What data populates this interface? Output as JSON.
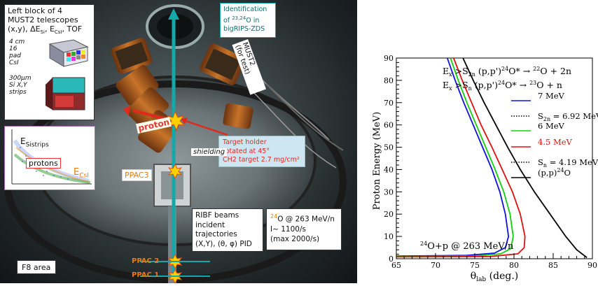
{
  "photo": {
    "must2_block": {
      "title_lines": [
        "Left block of 4",
        "MUST2 telescopes"
      ],
      "line3_pre": "(x,y), ΔE",
      "line3_sub1": "Si",
      "line3_mid": ", E",
      "line3_sub2": "CsI",
      "line3_post": ", TOF",
      "csi_label": [
        "4 cm",
        "16",
        "pad",
        "CsI"
      ],
      "si_label": [
        "300μm",
        "Si X,Y",
        "strips"
      ]
    },
    "identification": {
      "lines": [
        "Identification",
        "of ",
        "O in",
        "bigRIPS-ZDS"
      ],
      "sup": "23,24"
    },
    "must2_test": "MUST2\n(for test)",
    "proton_label": "proton",
    "target_holder": [
      "Target holder",
      "rotated at 45°",
      "CH2 target 2.7 mg/cm²"
    ],
    "shielding": "shielding",
    "ppac3": "PPAC3",
    "ppac2": "PPAC 2",
    "ppac1": "PPAC 1",
    "inset": {
      "esi_main": "E",
      "esi_sub": "Sistrips",
      "protons": "protons",
      "ecsi_main": "E",
      "ecsi_sub": "CsI"
    },
    "ribf": [
      "RIBF beams",
      "incident",
      "trajectories",
      "(X,Y), (θ, φ) PID"
    ],
    "beam_box": {
      "sup": "24",
      "l1": "O @ 263 MeV/n",
      "l2": "I~ 1100/s",
      "l3": "(max 2000/s)"
    },
    "f8": "F8 area"
  },
  "chart_data": {
    "type": "line",
    "xlabel_main": "θ",
    "xlabel_sub": "lab",
    "xlabel_post": " (deg.)",
    "ylabel": "Proton Energy (MeV)",
    "xlim": [
      65,
      90
    ],
    "ylim": [
      0,
      90
    ],
    "xticks": [
      65,
      70,
      75,
      80,
      85,
      90
    ],
    "yticks": [
      0,
      10,
      20,
      30,
      40,
      50,
      60,
      70,
      80,
      90
    ],
    "xtick_labels": [
      "65",
      "70",
      "75",
      "80",
      "85",
      "90"
    ],
    "ytick_labels": [
      "0",
      "10",
      "20",
      "30",
      "40",
      "50",
      "60",
      "70",
      "80",
      "90"
    ],
    "annotation_lines": [
      {
        "pre": "E",
        "sub": "x",
        "mid": " >S",
        "sub2": "2n",
        "post": "  (p,p')",
        "sup": "24",
        "tail": "O* → ",
        "sup2": "22",
        "end": "O + 2n"
      },
      {
        "pre": "E",
        "sub": "x",
        "mid": " >S",
        "sub2": "n",
        "post": "  (p,p')",
        "sup": "24",
        "tail": "O* → ",
        "sup2": "23",
        "end": "O + n"
      }
    ],
    "reaction": {
      "sup": "24",
      "text": "O+p @ 263 MeV/n"
    },
    "legend": [
      {
        "label": "7 MeV",
        "color": "#1010e0",
        "style": "solid"
      },
      {
        "label": "S",
        "sub": "2n",
        "post": " = 6.92 MeV",
        "color": "#000000",
        "style": "dotted"
      },
      {
        "label": "6 MeV",
        "color": "#10d010",
        "style": "solid"
      },
      {
        "label": "4.5 MeV",
        "color": "#e01010",
        "style": "solid",
        "text_color": "#e01010"
      },
      {
        "label": "S",
        "sub": "n",
        "post": " = 4.19 MeV",
        "color": "#000000",
        "style": "dotted"
      },
      {
        "label": "(p,p)",
        "sup": "24",
        "post": "O",
        "color": "#000000",
        "style": "solid"
      }
    ],
    "series": [
      {
        "color": "#1010e0",
        "points": [
          [
            71.5,
            90
          ],
          [
            72.5,
            80
          ],
          [
            73.6,
            70
          ],
          [
            74.8,
            60
          ],
          [
            76.0,
            50
          ],
          [
            77.2,
            40
          ],
          [
            78.2,
            30
          ],
          [
            78.9,
            20
          ],
          [
            79.3,
            10
          ],
          [
            78.9,
            5
          ],
          [
            77.5,
            2.5
          ],
          [
            74,
            1.5
          ],
          [
            65,
            1.2
          ]
        ]
      },
      {
        "color": "#10d010",
        "points": [
          [
            71.9,
            90
          ],
          [
            72.9,
            80
          ],
          [
            74.0,
            70
          ],
          [
            75.2,
            60
          ],
          [
            76.4,
            50
          ],
          [
            77.6,
            40
          ],
          [
            78.7,
            30
          ],
          [
            79.5,
            20
          ],
          [
            79.9,
            10
          ],
          [
            79.6,
            4.5
          ],
          [
            78.3,
            2.2
          ],
          [
            75,
            1.2
          ],
          [
            65,
            1.0
          ]
        ]
      },
      {
        "color": "#e01010",
        "points": [
          [
            72.3,
            90
          ],
          [
            73.4,
            80
          ],
          [
            74.6,
            70
          ],
          [
            75.8,
            60
          ],
          [
            77.2,
            50
          ],
          [
            78.5,
            40
          ],
          [
            79.8,
            30
          ],
          [
            80.8,
            20
          ],
          [
            81.4,
            10
          ],
          [
            81.3,
            5
          ],
          [
            80.5,
            2.2
          ],
          [
            77,
            1.0
          ],
          [
            65,
            0.8
          ]
        ]
      },
      {
        "color": "#000000",
        "points": [
          [
            73.5,
            90
          ],
          [
            74.8,
            80
          ],
          [
            76.2,
            70
          ],
          [
            77.7,
            60
          ],
          [
            79.2,
            50
          ],
          [
            80.8,
            40
          ],
          [
            82.6,
            30
          ],
          [
            84.6,
            20
          ],
          [
            86.6,
            10
          ],
          [
            88.0,
            4
          ],
          [
            89.3,
            0.5
          ]
        ]
      }
    ]
  }
}
